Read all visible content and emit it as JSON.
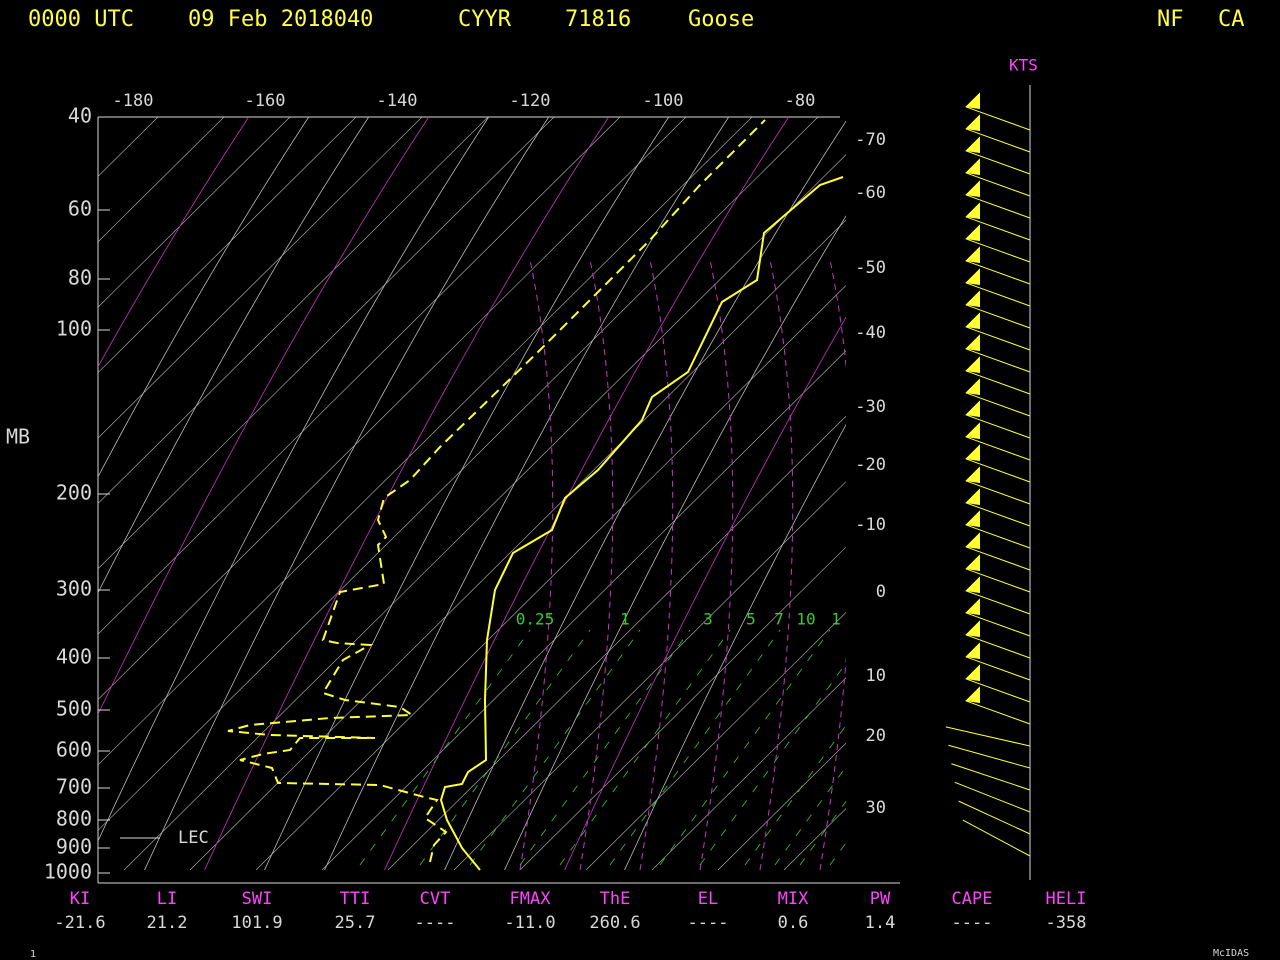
{
  "header": {
    "time": "0000 UTC",
    "date": "09 Feb 2018040",
    "station": "CYYR",
    "id": "71816",
    "name": "Goose",
    "region": "NF",
    "country": "CA"
  },
  "axes": {
    "unit": "MB",
    "wind_unit": "KTS",
    "pressure_labels": [
      "40",
      "60",
      "80",
      "100",
      "200",
      "300",
      "400",
      "500",
      "600",
      "700",
      "800",
      "900",
      "1000"
    ],
    "temperature_labels": [
      "-180",
      "-160",
      "-140",
      "-120",
      "-100",
      "-80"
    ],
    "height_labels": [
      "-70",
      "-60",
      "-50",
      "-40",
      "-30",
      "-20",
      "-10",
      "0",
      "10",
      "20",
      "30"
    ],
    "mixing_labels": [
      "0.25",
      "1",
      "3",
      "5",
      "7",
      "10",
      "1"
    ]
  },
  "legend": "LEC",
  "indices": [
    {
      "label": "KI",
      "value": "-21.6"
    },
    {
      "label": "LI",
      "value": "21.2"
    },
    {
      "label": "SWI",
      "value": "101.9"
    },
    {
      "label": "TTI",
      "value": "25.7"
    },
    {
      "label": "CVT",
      "value": "----"
    },
    {
      "label": "FMAX",
      "value": "-11.0"
    },
    {
      "label": "ThE",
      "value": "260.6"
    },
    {
      "label": "EL",
      "value": "----"
    },
    {
      "label": "MIX",
      "value": "0.6"
    },
    {
      "label": "PW",
      "value": "1.4"
    },
    {
      "label": "CAPE",
      "value": "----"
    },
    {
      "label": "HELI",
      "value": "-358"
    }
  ],
  "footer": {
    "frame": "1",
    "brand": "McIDAS"
  }
}
